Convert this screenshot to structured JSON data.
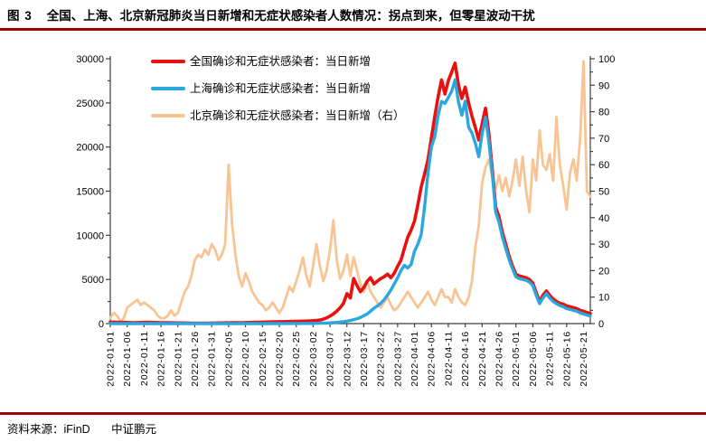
{
  "header": {
    "figure_label": "图 3",
    "title": "全国、上海、北京新冠肺炎当日新增和无症状感染者人数情况：拐点到来，但零星波动干扰"
  },
  "footer": {
    "source_label": "资料来源：iFinD",
    "org": "中证鹏元"
  },
  "colors": {
    "accent_rule": "#a00000",
    "axis": "#3f3f3f",
    "national": "#e8110f",
    "shanghai": "#2aa7df",
    "beijing": "#f8c493"
  },
  "chart_data": {
    "type": "line",
    "title": "",
    "grid": false,
    "legend_position": "top-left-inside",
    "start_date": "2022-01-01",
    "end_date": "2022-05-23",
    "x_tick_step_days": 5,
    "x_tick_labels": [
      "2022-01-01",
      "2022-01-06",
      "2022-01-11",
      "2022-01-16",
      "2022-01-21",
      "2022-01-26",
      "2022-01-31",
      "2022-02-05",
      "2022-02-10",
      "2022-02-15",
      "2022-02-20",
      "2022-02-25",
      "2022-03-02",
      "2022-03-07",
      "2022-03-12",
      "2022-03-17",
      "2022-03-22",
      "2022-03-27",
      "2022-04-01",
      "2022-04-06",
      "2022-04-11",
      "2022-04-16",
      "2022-04-21",
      "2022-04-26",
      "2022-05-01",
      "2022-05-06",
      "2022-05-11",
      "2022-05-16",
      "2022-05-21"
    ],
    "left_axis": {
      "min": 0,
      "max": 30000,
      "tick_step": 5000,
      "tick_labels": [
        "0",
        "5000",
        "10000",
        "15000",
        "20000",
        "25000",
        "30000"
      ]
    },
    "right_axis": {
      "min": 0,
      "max": 100,
      "tick_step": 10,
      "tick_labels": [
        "0",
        "10",
        "20",
        "30",
        "40",
        "50",
        "60",
        "70",
        "80",
        "90",
        "100"
      ]
    },
    "series": [
      {
        "name": "全国确诊和无症状感染者：当日新增",
        "axis": "left",
        "color": "#e8110f",
        "values": [
          175,
          160,
          150,
          140,
          130,
          120,
          110,
          105,
          110,
          120,
          135,
          140,
          130,
          120,
          110,
          100,
          95,
          90,
          85,
          80,
          75,
          70,
          65,
          60,
          55,
          50,
          45,
          45,
          50,
          55,
          60,
          65,
          70,
          75,
          80,
          85,
          90,
          95,
          100,
          105,
          110,
          120,
          130,
          140,
          150,
          160,
          170,
          180,
          190,
          200,
          210,
          220,
          230,
          240,
          250,
          260,
          270,
          280,
          290,
          310,
          330,
          360,
          400,
          500,
          650,
          850,
          1100,
          1400,
          1800,
          2300,
          3400,
          2900,
          5100,
          4300,
          3600,
          4100,
          4800,
          5200,
          4500,
          4800,
          5100,
          5300,
          5600,
          5200,
          5700,
          6500,
          7200,
          8500,
          9800,
          10600,
          11600,
          13500,
          15500,
          17000,
          18600,
          21000,
          23500,
          25700,
          27600,
          26000,
          27500,
          28500,
          29500,
          27000,
          25500,
          26800,
          25000,
          23500,
          22200,
          20800,
          22600,
          24400,
          21500,
          17500,
          13200,
          12100,
          10300,
          9000,
          7600,
          6500,
          5600,
          5400,
          5300,
          5200,
          5000,
          4600,
          3500,
          2500,
          3200,
          3700,
          3200,
          2800,
          2500,
          2300,
          2200,
          2000,
          1900,
          1800,
          1700,
          1500,
          1400,
          1250,
          1150
        ]
      },
      {
        "name": "上海确诊和无症状感染者：当日新增",
        "axis": "left",
        "color": "#2aa7df",
        "values": [
          5,
          4,
          4,
          3,
          3,
          3,
          2,
          2,
          2,
          2,
          2,
          2,
          2,
          2,
          2,
          2,
          1,
          1,
          1,
          1,
          1,
          1,
          1,
          1,
          1,
          1,
          1,
          1,
          1,
          1,
          1,
          1,
          1,
          1,
          1,
          1,
          1,
          1,
          1,
          1,
          1,
          1,
          1,
          2,
          2,
          2,
          3,
          3,
          4,
          5,
          6,
          7,
          8,
          9,
          10,
          12,
          14,
          16,
          18,
          20,
          25,
          30,
          40,
          50,
          60,
          80,
          100,
          130,
          170,
          220,
          280,
          350,
          450,
          550,
          700,
          900,
          1100,
          1400,
          1750,
          2000,
          2300,
          2700,
          3200,
          3800,
          4500,
          5200,
          6000,
          6600,
          6300,
          6700,
          8200,
          9000,
          10100,
          13350,
          17080,
          19980,
          21220,
          23600,
          25170,
          24940,
          25600,
          26330,
          27600,
          25100,
          23600,
          25200,
          22250,
          21580,
          20420,
          18900,
          21500,
          23370,
          20600,
          16980,
          12650,
          11500,
          9800,
          8500,
          7200,
          6200,
          5300,
          5100,
          5000,
          4900,
          4700,
          4300,
          3200,
          2250,
          2900,
          3400,
          2900,
          2500,
          2250,
          2050,
          1900,
          1700,
          1600,
          1500,
          1400,
          1200,
          1100,
          960,
          860
        ]
      },
      {
        "name": "北京确诊和无症状感染者：当日新增（右）",
        "axis": "right",
        "color": "#f8c493",
        "values": [
          2,
          4,
          3,
          1,
          2,
          6,
          7,
          8,
          9,
          7,
          8,
          7,
          6,
          5,
          3,
          2,
          2,
          3,
          5,
          3,
          4,
          8,
          12,
          14,
          18,
          24,
          26,
          25,
          28,
          26,
          30,
          28,
          24,
          26,
          30,
          60,
          38,
          26,
          18,
          14,
          19,
          16,
          12,
          10,
          8,
          7,
          5,
          6,
          8,
          6,
          4,
          6,
          10,
          14,
          12,
          16,
          20,
          25,
          18,
          14,
          22,
          30,
          22,
          16,
          20,
          28,
          39,
          24,
          17,
          20,
          26,
          18,
          25,
          20,
          15,
          12,
          16,
          12,
          10,
          8,
          6,
          8,
          10,
          7,
          5,
          6,
          8,
          10,
          12,
          10,
          8,
          6,
          8,
          10,
          12,
          9,
          7,
          10,
          13,
          10,
          10,
          8,
          13,
          10,
          8,
          7,
          10,
          16,
          29,
          37,
          53,
          59,
          62,
          55,
          51,
          56,
          50,
          55,
          48,
          54,
          62,
          52,
          63,
          50,
          42,
          62,
          54,
          73,
          60,
          58,
          64,
          54,
          78,
          60,
          52,
          43,
          57,
          62,
          54,
          70,
          99,
          50,
          48
        ]
      }
    ]
  }
}
